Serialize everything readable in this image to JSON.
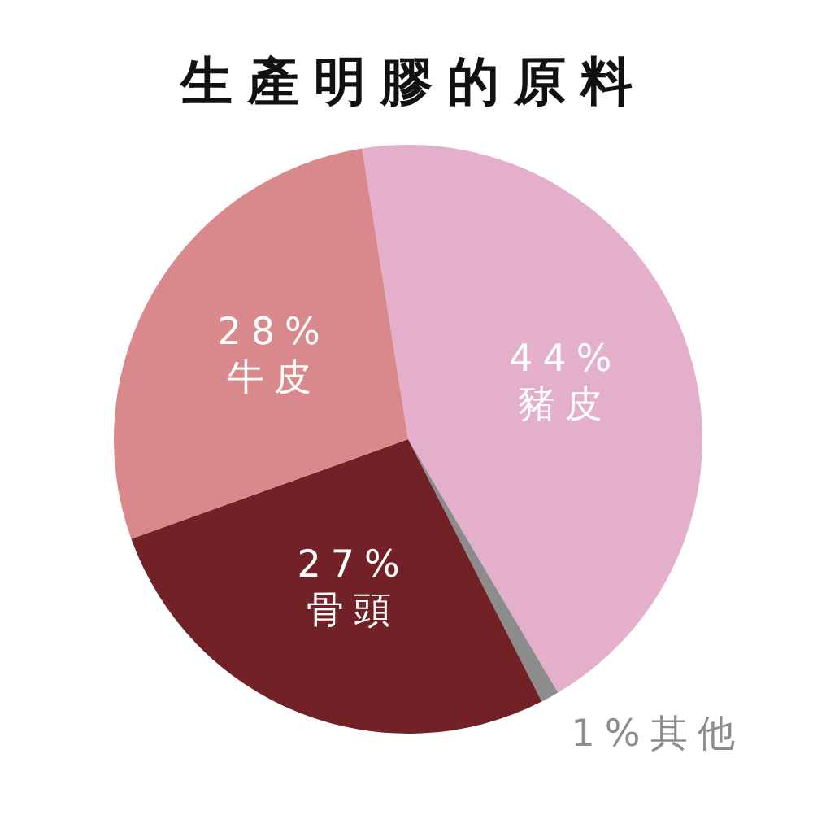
{
  "chart_data": {
    "type": "pie",
    "title": "生產明膠的原料",
    "categories": [
      "豬皮",
      "其他",
      "骨頭",
      "牛皮"
    ],
    "values": [
      44,
      1,
      27,
      28
    ],
    "colors": [
      "#e4afcb",
      "#8c8c8c",
      "#722126",
      "#d9898b"
    ],
    "value_labels": [
      "44%",
      "1%",
      "27%",
      "28%"
    ]
  }
}
